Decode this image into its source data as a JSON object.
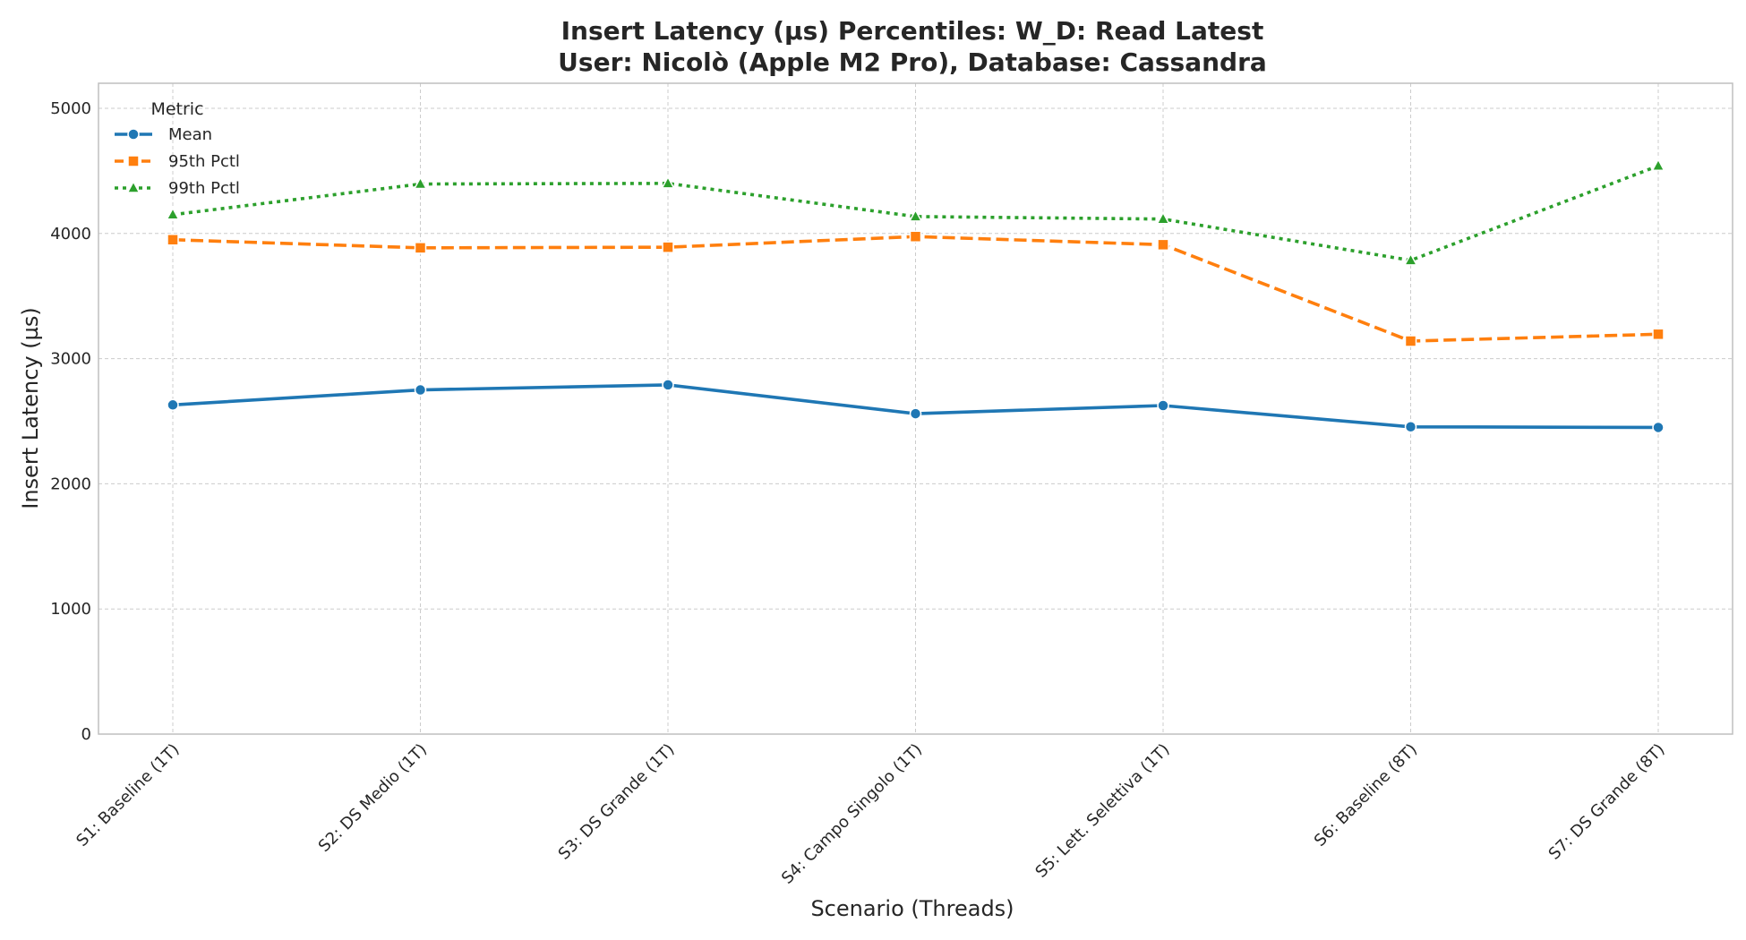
{
  "chart_data": {
    "type": "line",
    "title": "Insert Latency (µs) Percentiles: W_D: Read Latest",
    "subtitle": "User: Nicolò (Apple M2 Pro), Database: Cassandra",
    "xlabel": "Scenario (Threads)",
    "ylabel": "Insert Latency (µs)",
    "ylim": [
      0,
      5200
    ],
    "yticks": [
      0,
      1000,
      2000,
      3000,
      4000,
      5000
    ],
    "grid": true,
    "legend": {
      "title": "Metric",
      "placement": "top-left"
    },
    "categories": [
      "S1: Baseline (1T)",
      "S2: DS Medio (1T)",
      "S3: DS Grande (1T)",
      "S4: Campo Singolo (1T)",
      "S5: Lett. Selettiva (1T)",
      "S6: Baseline (8T)",
      "S7: DS Grande (8T)"
    ],
    "series": [
      {
        "name": "Mean",
        "color": "#1f77b4",
        "style": "solid",
        "marker": "circle",
        "values": [
          2630,
          2750,
          2790,
          2560,
          2625,
          2455,
          2450
        ]
      },
      {
        "name": "95th Pctl",
        "color": "#ff7f0e",
        "style": "dashed",
        "marker": "square",
        "values": [
          3950,
          3885,
          3890,
          3975,
          3910,
          3140,
          3195
        ]
      },
      {
        "name": "99th Pctl",
        "color": "#2ca02c",
        "style": "dotted",
        "marker": "triangle",
        "values": [
          4150,
          4395,
          4400,
          4135,
          4115,
          3785,
          4540
        ]
      }
    ]
  }
}
